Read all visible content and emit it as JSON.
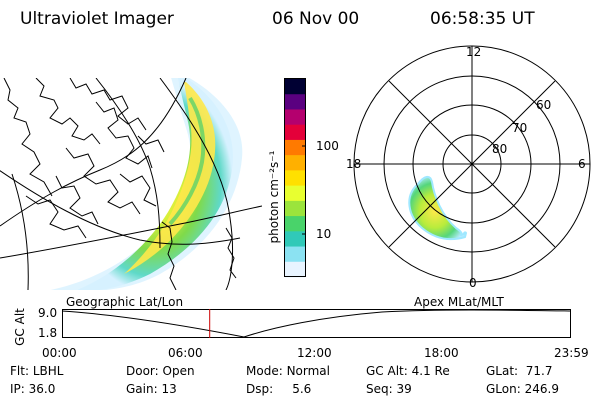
{
  "header": {
    "instrument": "Ultraviolet Imager",
    "date": "06 Nov 00",
    "time": "06:58:35 UT"
  },
  "colorbar": {
    "unit": "photon cm⁻²s⁻¹",
    "ticks": [
      "100",
      "10"
    ],
    "colors": [
      "#000033",
      "#5a0080",
      "#b4006e",
      "#e4003a",
      "#ff7a00",
      "#ffb000",
      "#ffe000",
      "#e8ff30",
      "#9be43c",
      "#49d36a",
      "#30c9b8",
      "#8be2f2",
      "#e8f4ff"
    ]
  },
  "geo_map": {
    "caption": "Geographic Lat/Lon"
  },
  "polar_map": {
    "caption": "Apex MLat/MLT",
    "mlt_labels": [
      "12",
      "18",
      "6",
      "0"
    ],
    "lat_labels": [
      "60",
      "70",
      "80"
    ]
  },
  "timeline": {
    "ylabel": "GC Alt",
    "y_ticks": [
      "9.0",
      "1.8"
    ],
    "x_ticks": [
      "00:00",
      "06:00",
      "12:00",
      "18:00",
      "23:59"
    ],
    "marker_time_hours": 6.976,
    "marker_color": "#cc0000"
  },
  "status": [
    {
      "label": "Flt:",
      "value": "LBHL"
    },
    {
      "label": "IP:",
      "value": "36.0"
    },
    {
      "label": "Door:",
      "value": "Open"
    },
    {
      "label": "Gain:",
      "value": "13"
    },
    {
      "label": "Mode:",
      "value": "Normal"
    },
    {
      "label": "Dsp:",
      "value": "5.6"
    },
    {
      "label": "GC Alt:",
      "value": "4.1 Re"
    },
    {
      "label": "Seq:",
      "value": "39"
    },
    {
      "label": "GLat:",
      "value": "71.7"
    },
    {
      "label": "GLon:",
      "value": "246.9"
    }
  ]
}
